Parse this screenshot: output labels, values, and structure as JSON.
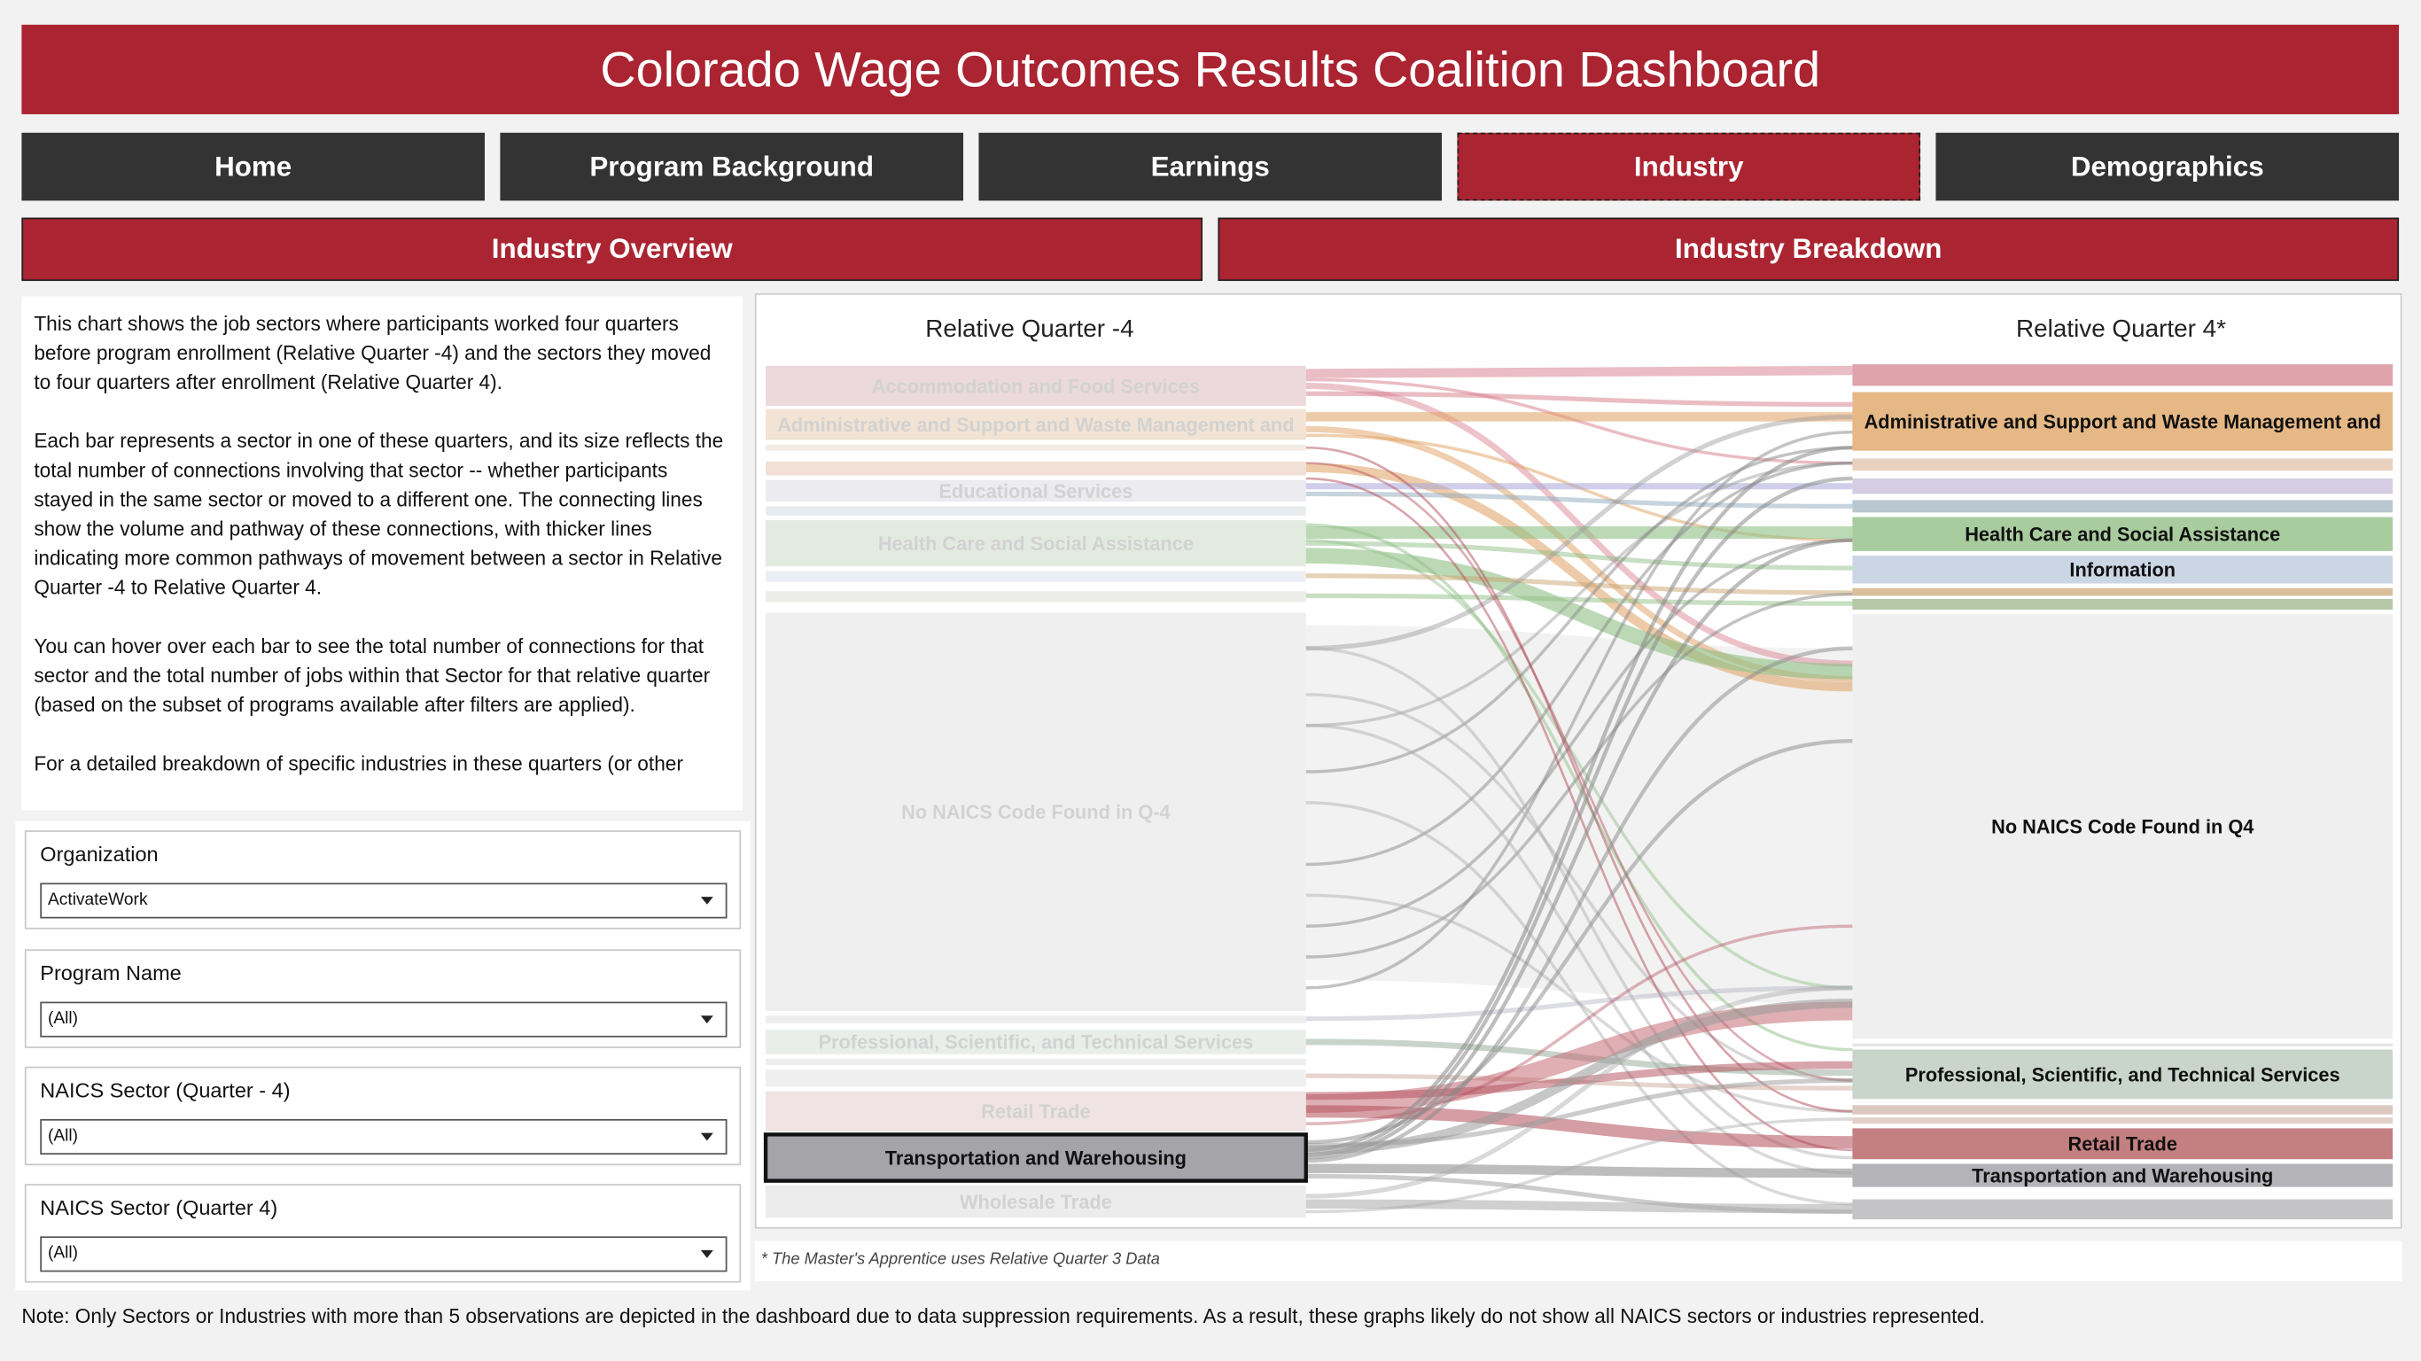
{
  "header": {
    "title": "Colorado Wage Outcomes Results Coalition Dashboard"
  },
  "nav": [
    "Home",
    "Program Background",
    "Earnings",
    "Industry",
    "Demographics"
  ],
  "subnav": [
    "Industry Overview",
    "Industry Breakdown"
  ],
  "description": [
    "This chart shows the job sectors where participants worked four quarters before program enrollment (Relative Quarter -4) and the sectors they moved to four quarters after enrollment (Relative Quarter 4).",
    "Each bar represents a sector in one of these quarters, and its size reflects the total number of connections involving that sector -- whether participants stayed in the same sector or moved to a different one. The connecting lines show the volume and pathway of these connections, with thicker lines indicating more common pathways of movement between a sector in Relative Quarter -4 to Relative Quarter 4.",
    "You can hover over each bar to see the total number of connections for that sector and the total number of jobs within that Sector for that relative quarter (based on the subset of programs available after filters are applied).",
    "For a detailed breakdown of specific industries in these quarters (or other"
  ],
  "filters": [
    {
      "label": "Organization",
      "value": "ActivateWork"
    },
    {
      "label": "Program Name",
      "value": "(All)"
    },
    {
      "label": "NAICS Sector (Quarter - 4)",
      "value": "(All)"
    },
    {
      "label": "NAICS Sector (Quarter 4)",
      "value": "(All)"
    }
  ],
  "sankey": {
    "left_title": "Relative Quarter -4",
    "right_title": "Relative Quarter 4*",
    "left_nodes": [
      "Accommodation and Food Services",
      "Administrative and Support and Waste Management and",
      "Educational Services",
      "Health Care and Social Assistance",
      "No NAICS Code Found in Q-4",
      "Professional, Scientific, and Technical Services",
      "Retail Trade",
      "Transportation and Warehousing",
      "Wholesale Trade"
    ],
    "right_nodes": [
      "Administrative and Support and Waste Management and",
      "Health Care and Social Assistance",
      "Information",
      "No NAICS Code Found in Q4",
      "Professional, Scientific, and Technical Services",
      "Retail Trade",
      "Transportation and Warehousing"
    ]
  },
  "footnote": "* The Master's Apprentice uses Relative Quarter 3 Data",
  "note": "Note: Only Sectors or Industries with more than 5 observations are depicted in the dashboard due to data suppression requirements. As a result, these graphs likely do not show all NAICS sectors or industries represented."
}
